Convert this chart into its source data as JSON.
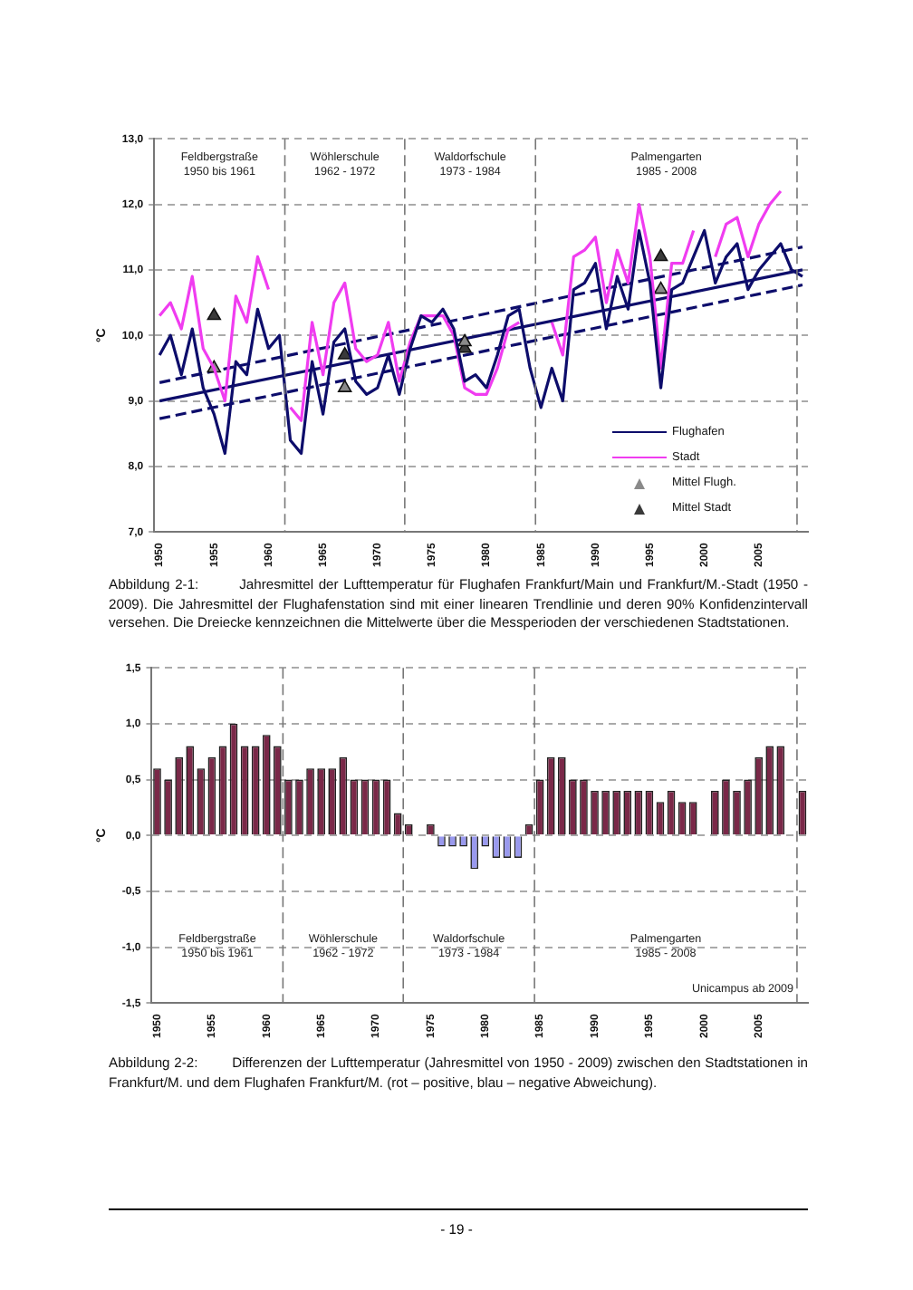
{
  "chart_data": [
    {
      "type": "line",
      "ylabel": "°C",
      "xlim": [
        1949.5,
        2009.5
      ],
      "xticks": [
        1950,
        1955,
        1960,
        1965,
        1970,
        1975,
        1980,
        1985,
        1990,
        1995,
        2000,
        2005
      ],
      "ylim": [
        7,
        13
      ],
      "yticks": [
        {
          "value": 7,
          "label": "7,0"
        },
        {
          "value": 8,
          "label": "8,0"
        },
        {
          "value": 9,
          "label": "9,0"
        },
        {
          "value": 10,
          "label": "10,0"
        },
        {
          "value": 11,
          "label": "11,0"
        },
        {
          "value": 12,
          "label": "12,0"
        },
        {
          "value": 13,
          "label": "13,0"
        }
      ],
      "grid": "y",
      "legend": "bottom right",
      "marker": "none",
      "x": [
        1950,
        1951,
        1952,
        1953,
        1954,
        1955,
        1956,
        1957,
        1958,
        1959,
        1960,
        1961,
        1962,
        1963,
        1964,
        1965,
        1966,
        1967,
        1968,
        1969,
        1970,
        1971,
        1972,
        1973,
        1974,
        1975,
        1976,
        1977,
        1978,
        1979,
        1980,
        1981,
        1982,
        1983,
        1984,
        1985,
        1986,
        1987,
        1988,
        1989,
        1990,
        1991,
        1992,
        1993,
        1994,
        1995,
        1996,
        1997,
        1998,
        1999,
        2000,
        2001,
        2002,
        2003,
        2004,
        2005,
        2006,
        2007,
        2008,
        2009
      ],
      "series": [
        {
          "name": "Flughafen",
          "color": "#0d0d6b",
          "values": [
            9.7,
            10.0,
            9.4,
            10.1,
            9.2,
            8.8,
            8.2,
            9.6,
            9.4,
            10.4,
            9.8,
            10.0,
            8.4,
            8.2,
            9.6,
            8.8,
            9.9,
            10.1,
            9.3,
            9.1,
            9.2,
            9.7,
            9.1,
            9.8,
            10.3,
            10.2,
            10.4,
            10.1,
            9.3,
            9.4,
            9.2,
            9.7,
            10.3,
            10.4,
            9.5,
            8.9,
            9.5,
            9.0,
            10.7,
            10.8,
            11.1,
            10.1,
            10.9,
            10.4,
            11.6,
            10.8,
            9.2,
            10.7,
            10.8,
            11.2,
            11.6,
            10.8,
            11.2,
            11.4,
            10.7,
            11.0,
            11.2,
            11.4,
            11.0,
            10.9
          ]
        },
        {
          "name": "Stadt",
          "color": "#f03cf0",
          "values": [
            10.3,
            10.5,
            10.1,
            10.9,
            9.8,
            9.5,
            9.0,
            10.6,
            10.2,
            11.2,
            10.7,
            null,
            8.9,
            8.7,
            10.2,
            9.4,
            10.5,
            10.8,
            9.8,
            9.6,
            9.7,
            10.2,
            9.3,
            9.9,
            10.3,
            10.3,
            10.3,
            10.0,
            9.2,
            9.1,
            9.1,
            9.5,
            10.1,
            10.2,
            null,
            null,
            10.2,
            9.7,
            11.2,
            11.3,
            11.5,
            10.5,
            11.3,
            10.8,
            12.0,
            11.2,
            9.5,
            11.1,
            11.1,
            11.6,
            null,
            11.2,
            11.7,
            11.8,
            11.2,
            11.7,
            12.0,
            12.2,
            null,
            null
          ]
        },
        {
          "name": "Mittel Flugh.",
          "type": "scatter",
          "marker": "triangle",
          "color": "#8a8a8a",
          "x": [
            1955,
            1967,
            1978,
            1996
          ],
          "values": [
            9.5,
            9.2,
            9.9,
            10.7
          ]
        },
        {
          "name": "Mittel Stadt",
          "type": "scatter",
          "marker": "triangle",
          "color": "#3a3a3a",
          "x": [
            1955,
            1967,
            1978,
            1996
          ],
          "values": [
            10.3,
            9.7,
            9.8,
            11.2
          ]
        },
        {
          "type": "line",
          "color": "#0d0d6b",
          "x": [
            1950,
            2009
          ],
          "values": [
            9.0,
            11.0
          ]
        },
        {
          "type": "line",
          "color": "#0d0d6b",
          "line_style": "dashed",
          "x": [
            1950,
            2009
          ],
          "values": [
            9.28,
            11.35
          ]
        },
        {
          "type": "line",
          "color": "#0d0d6b",
          "line_style": "dashed",
          "x": [
            1950,
            2009
          ],
          "values": [
            8.73,
            10.77
          ]
        }
      ],
      "ref_lines": [
        {
          "axis": "x",
          "value": 1961.5
        },
        {
          "axis": "x",
          "value": 1972.5
        },
        {
          "axis": "x",
          "value": 1984.5
        },
        {
          "axis": "x",
          "value": 2008.5
        }
      ],
      "annotations": [
        "Feldbergstraße\n1950 bis 1961",
        "Wöhlerschule\n1962 - 1972",
        "Waldorfschule\n1973 - 1984",
        "Palmengarten\n1985 - 2008",
        "Abbildung 2-1:        Jahresmittel der Lufttemperatur für Flughafen Frankfurt/Main und Frankfurt/M.-Stadt (1950 - 2009). Die Jahresmittel der Flughafenstation sind mit einer linearen Trendlinie und deren 90% Konfidenzintervall versehen. Die Dreiecke kennzeichnen die Mittelwerte über die Messperioden der verschiedenen Stadtstationen."
      ]
    },
    {
      "type": "bar",
      "ylabel": "°C",
      "xlim": [
        1949.5,
        2009.5
      ],
      "xticks": [
        1950,
        1955,
        1960,
        1965,
        1970,
        1975,
        1980,
        1985,
        1990,
        1995,
        2000,
        2005
      ],
      "ylim": [
        -1.5,
        1.5
      ],
      "yticks": [
        {
          "value": -1.5,
          "label": "-1,5"
        },
        {
          "value": -1,
          "label": "-1,0"
        },
        {
          "value": -0.5,
          "label": "-0,5"
        },
        {
          "value": 0,
          "label": "0,0"
        },
        {
          "value": 0.5,
          "label": "0,5"
        },
        {
          "value": 1,
          "label": "1,0"
        },
        {
          "value": 1.5,
          "label": "1,5"
        }
      ],
      "grid": "y",
      "x": [
        1950,
        1951,
        1952,
        1953,
        1954,
        1955,
        1956,
        1957,
        1958,
        1959,
        1960,
        1961,
        1962,
        1963,
        1964,
        1965,
        1966,
        1967,
        1968,
        1969,
        1970,
        1971,
        1972,
        1973,
        1974,
        1975,
        1976,
        1977,
        1978,
        1979,
        1980,
        1981,
        1982,
        1983,
        1984,
        1985,
        1986,
        1987,
        1988,
        1989,
        1990,
        1991,
        1992,
        1993,
        1994,
        1995,
        1996,
        1997,
        1998,
        1999,
        2000,
        2001,
        2002,
        2003,
        2004,
        2005,
        2006,
        2007,
        2008,
        2009
      ],
      "values": [
        0.6,
        0.5,
        0.7,
        0.8,
        0.6,
        0.7,
        0.8,
        1.0,
        0.8,
        0.8,
        0.9,
        0.8,
        0.5,
        0.5,
        0.6,
        0.6,
        0.6,
        0.7,
        0.5,
        0.5,
        0.5,
        0.5,
        0.2,
        0.1,
        null,
        0.1,
        -0.1,
        -0.1,
        -0.1,
        -0.3,
        -0.1,
        -0.2,
        -0.2,
        -0.2,
        0.1,
        0.5,
        0.7,
        0.7,
        0.5,
        0.5,
        0.4,
        0.4,
        0.4,
        0.4,
        0.4,
        0.4,
        0.3,
        0.4,
        0.3,
        0.3,
        null,
        0.4,
        0.5,
        0.4,
        0.5,
        0.7,
        0.8,
        0.8,
        null,
        0.4
      ],
      "colors": [
        "#7a2848",
        "#7a2848",
        "#7a2848",
        "#7a2848",
        "#7a2848",
        "#7a2848",
        "#7a2848",
        "#7a2848",
        "#7a2848",
        "#7a2848",
        "#7a2848",
        "#7a2848",
        "#7a2848",
        "#7a2848",
        "#7a2848",
        "#7a2848",
        "#7a2848",
        "#7a2848",
        "#7a2848",
        "#7a2848",
        "#7a2848",
        "#7a2848",
        "#7a2848",
        "#7a2848",
        "#7a2848",
        "#7a2848",
        "#9999ee",
        "#9999ee",
        "#9999ee",
        "#9999ee",
        "#9999ee",
        "#9999ee",
        "#9999ee",
        "#9999ee",
        "#7a2848",
        "#7a2848",
        "#7a2848",
        "#7a2848",
        "#7a2848",
        "#7a2848",
        "#7a2848",
        "#7a2848",
        "#7a2848",
        "#7a2848",
        "#7a2848",
        "#7a2848",
        "#7a2848",
        "#7a2848",
        "#7a2848",
        "#7a2848",
        "#7a2848",
        "#7a2848",
        "#7a2848",
        "#7a2848",
        "#7a2848",
        "#7a2848",
        "#7a2848",
        "#7a2848",
        "#7a2848",
        "#7a2848"
      ],
      "ref_lines": [
        {
          "axis": "x",
          "value": 1961.5
        },
        {
          "axis": "x",
          "value": 1972.5
        },
        {
          "axis": "x",
          "value": 1984.5
        },
        {
          "axis": "x",
          "value": 2008.5
        }
      ],
      "annotations": [
        "Feldbergstraße\n1950 bis 1961",
        "Wöhlerschule\n1962 - 1972",
        "Waldorfschule\n1973 - 1984",
        "Palmengarten\n1985 - 2008",
        "Unicampus ab 2009",
        "Abbildung 2-2:        Differenzen der Lufttemperatur (Jahresmittel von 1950 - 2009) zwischen den Stadtstationen in Frankfurt/M. und dem Flughafen Frankfurt/M. (rot – positive, blau – negative Abweichung).",
        "- 19 -"
      ]
    }
  ]
}
